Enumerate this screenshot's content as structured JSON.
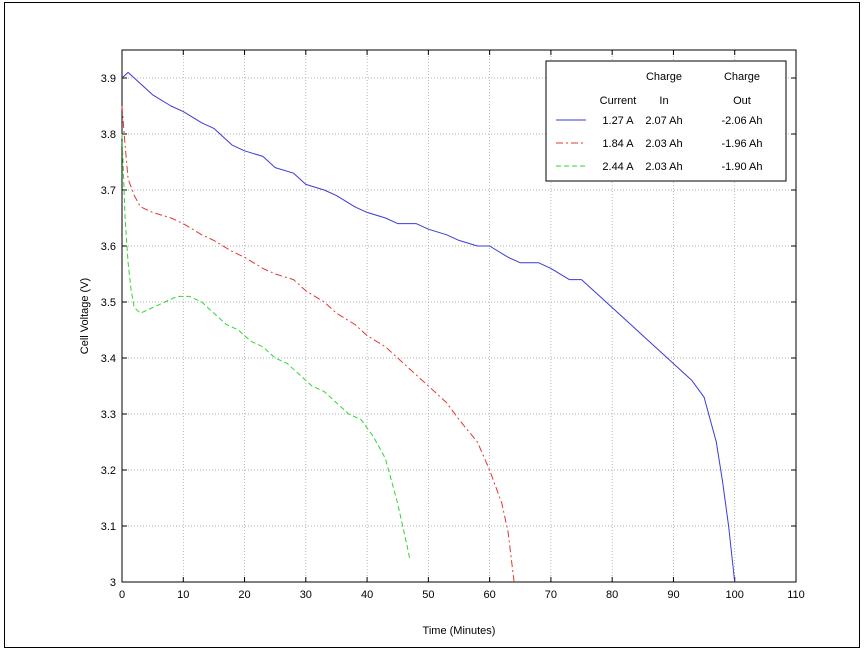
{
  "chart_data": {
    "type": "line",
    "xlabel": "Time (Minutes)",
    "ylabel": "Cell Voltage (V)",
    "xlim": [
      0,
      110
    ],
    "ylim": [
      3.0,
      3.95
    ],
    "xticks": [
      "0",
      "10",
      "20",
      "30",
      "40",
      "50",
      "60",
      "70",
      "80",
      "90",
      "100",
      "110"
    ],
    "xtick_values": [
      0,
      10,
      20,
      30,
      40,
      50,
      60,
      70,
      80,
      90,
      100,
      110
    ],
    "yticks": [
      "3",
      "3.1",
      "3.2",
      "3.3",
      "3.4",
      "3.5",
      "3.6",
      "3.7",
      "3.8",
      "3.9"
    ],
    "ytick_values": [
      3.0,
      3.1,
      3.2,
      3.3,
      3.4,
      3.5,
      3.6,
      3.7,
      3.8,
      3.9
    ],
    "grid": true,
    "legend_position": "top-right",
    "legend": {
      "header_row1": [
        "",
        "Charge",
        "Charge"
      ],
      "header_row2": [
        "Current",
        "In",
        "Out"
      ]
    },
    "series": [
      {
        "name": "1.27 A",
        "charge_in": "2.07 Ah",
        "charge_out": "-2.06 Ah",
        "color": "#3b3bd6",
        "dash": "",
        "x": [
          0,
          1,
          3,
          5,
          8,
          10,
          13,
          15,
          18,
          20,
          23,
          25,
          28,
          30,
          33,
          35,
          38,
          40,
          43,
          45,
          48,
          50,
          53,
          55,
          58,
          60,
          63,
          65,
          68,
          70,
          73,
          75,
          78,
          80,
          83,
          85,
          88,
          90,
          93,
          95,
          97,
          98,
          99,
          100
        ],
        "y": [
          3.9,
          3.91,
          3.89,
          3.87,
          3.85,
          3.84,
          3.82,
          3.81,
          3.78,
          3.77,
          3.76,
          3.74,
          3.73,
          3.71,
          3.7,
          3.69,
          3.67,
          3.66,
          3.65,
          3.64,
          3.64,
          3.63,
          3.62,
          3.61,
          3.6,
          3.6,
          3.58,
          3.57,
          3.57,
          3.56,
          3.54,
          3.54,
          3.51,
          3.49,
          3.46,
          3.44,
          3.41,
          3.39,
          3.36,
          3.33,
          3.25,
          3.18,
          3.1,
          3.0
        ]
      },
      {
        "name": "1.84 A",
        "charge_in": "2.03 Ah",
        "charge_out": "-1.96 Ah",
        "color": "#e0392f",
        "dash": "7,3,2,3",
        "x": [
          0,
          0.5,
          1,
          2,
          3,
          5,
          8,
          10,
          13,
          15,
          18,
          20,
          23,
          25,
          28,
          30,
          33,
          35,
          38,
          40,
          43,
          45,
          48,
          50,
          53,
          55,
          58,
          60,
          62,
          63,
          64
        ],
        "y": [
          3.85,
          3.78,
          3.72,
          3.69,
          3.67,
          3.66,
          3.65,
          3.64,
          3.62,
          3.61,
          3.59,
          3.58,
          3.56,
          3.55,
          3.54,
          3.52,
          3.5,
          3.48,
          3.46,
          3.44,
          3.42,
          3.4,
          3.37,
          3.35,
          3.32,
          3.29,
          3.25,
          3.2,
          3.14,
          3.09,
          3.0
        ]
      },
      {
        "name": "2.44 A",
        "charge_in": "2.03 Ah",
        "charge_out": "-1.90 Ah",
        "color": "#2fd62f",
        "dash": "5,3",
        "x": [
          0,
          0.5,
          1,
          1.5,
          2,
          3,
          5,
          7,
          9,
          11,
          13,
          15,
          17,
          19,
          21,
          23,
          25,
          27,
          29,
          31,
          33,
          35,
          37,
          39,
          41,
          43,
          44,
          45,
          46,
          47
        ],
        "y": [
          3.8,
          3.65,
          3.57,
          3.52,
          3.49,
          3.48,
          3.49,
          3.5,
          3.51,
          3.51,
          3.5,
          3.48,
          3.46,
          3.45,
          3.43,
          3.42,
          3.4,
          3.39,
          3.37,
          3.35,
          3.34,
          3.32,
          3.3,
          3.29,
          3.26,
          3.22,
          3.18,
          3.14,
          3.09,
          3.04
        ]
      }
    ]
  }
}
